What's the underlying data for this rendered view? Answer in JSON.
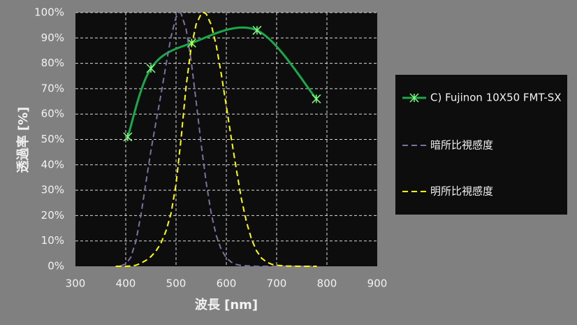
{
  "chart_data": {
    "type": "line",
    "xlabel": "波長 [nm]",
    "ylabel": "透過率 [%]",
    "xlim": [
      300,
      900
    ],
    "xticks": [
      300,
      400,
      500,
      600,
      700,
      800,
      900
    ],
    "ylim": [
      0,
      100
    ],
    "yticks": [
      {
        "value": 0,
        "label": "0%"
      },
      {
        "value": 10,
        "label": "10%"
      },
      {
        "value": 20,
        "label": "20%"
      },
      {
        "value": 30,
        "label": "30%"
      },
      {
        "value": 40,
        "label": "40%"
      },
      {
        "value": 50,
        "label": "50%"
      },
      {
        "value": 60,
        "label": "60%"
      },
      {
        "value": 70,
        "label": "70%"
      },
      {
        "value": 80,
        "label": "80%"
      },
      {
        "value": 90,
        "label": "90%"
      },
      {
        "value": 100,
        "label": "100%"
      }
    ],
    "grid": true,
    "legend": "right",
    "series": [
      {
        "name": "C) Fujinon 10X50 FMT-SX",
        "color": "#1aa84a",
        "style": "solid",
        "smooth": true,
        "marker": true,
        "x": [
          404,
          450,
          531,
          661,
          779
        ],
        "values": [
          51,
          78,
          88,
          93,
          66
        ]
      },
      {
        "name": "暗所比視感度",
        "color": "#7f6f9f",
        "style": "dashed",
        "x": [
          390,
          400,
          410,
          420,
          430,
          440,
          450,
          460,
          470,
          480,
          490,
          500,
          507,
          510,
          520,
          530,
          540,
          550,
          560,
          570,
          580,
          590,
          600,
          610,
          620,
          630,
          640,
          650,
          660,
          680,
          700,
          730,
          770
        ],
        "values": [
          0.2,
          0.9,
          3.5,
          9.7,
          20,
          32.8,
          45.5,
          56.7,
          67.6,
          79.3,
          90.4,
          98.2,
          100,
          99.7,
          93.5,
          81.1,
          65,
          48.1,
          32.9,
          20.8,
          12.1,
          6.6,
          3.3,
          1.6,
          0.7,
          0.3,
          0.2,
          0.1,
          0,
          0,
          0,
          0,
          0
        ]
      },
      {
        "name": "明所比視感度",
        "color": "#ffff00",
        "style": "dashed",
        "x": [
          380,
          400,
          410,
          420,
          430,
          440,
          450,
          460,
          470,
          480,
          490,
          500,
          510,
          520,
          530,
          540,
          550,
          555,
          560,
          570,
          580,
          590,
          600,
          610,
          620,
          630,
          640,
          650,
          660,
          670,
          680,
          690,
          700,
          720,
          750,
          780
        ],
        "values": [
          0,
          0,
          0.1,
          0.4,
          1.2,
          2.3,
          3.8,
          6,
          9.1,
          13.9,
          20.8,
          32.3,
          50.3,
          71,
          86.2,
          95.4,
          99.5,
          100,
          99.5,
          95.2,
          87,
          75.7,
          63.1,
          50.3,
          38.1,
          26.5,
          17.5,
          10.7,
          6.1,
          3.2,
          1.7,
          0.8,
          0.4,
          0.1,
          0,
          0
        ]
      }
    ]
  }
}
